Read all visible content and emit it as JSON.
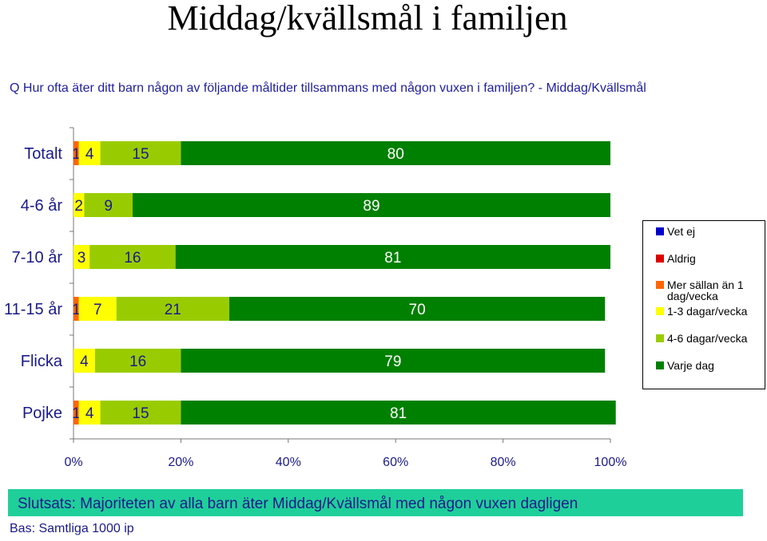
{
  "title": "Middag/kvällsmål i familjen",
  "question": "Q  Hur ofta äter ditt barn någon av följande måltider tillsammans med någon vuxen i familjen? - Middag/Kvällsmål",
  "conclusion": "Slutsats: Majoriteten av alla barn äter Middag/Kvällsmål med någon vuxen dagligen",
  "base": "Bas: Samtliga 1000 ip",
  "chart_data": {
    "type": "bar",
    "orientation": "horizontal",
    "stacked": true,
    "categories": [
      "Totalt",
      "4-6 år",
      "7-10 år",
      "11-15 år",
      "Flicka",
      "Pojke"
    ],
    "series": [
      {
        "name": "Vet ej",
        "color": "#0000cc",
        "values": [
          0,
          0,
          0,
          0,
          0,
          0
        ]
      },
      {
        "name": "Aldrig",
        "color": "#dd0000",
        "values": [
          0,
          0,
          0,
          0,
          0,
          0
        ]
      },
      {
        "name": "Mer sällan än 1 dag/vecka",
        "color": "#ff6600",
        "values": [
          1,
          0,
          0,
          1,
          0,
          1
        ]
      },
      {
        "name": "1-3 dagar/vecka",
        "color": "#ffff00",
        "values": [
          4,
          2,
          3,
          7,
          4,
          4
        ]
      },
      {
        "name": "4-6 dagar/vecka",
        "color": "#99cc00",
        "values": [
          15,
          9,
          16,
          21,
          16,
          15
        ]
      },
      {
        "name": "Varje dag",
        "color": "#008000",
        "values": [
          80,
          89,
          81,
          70,
          79,
          81
        ]
      }
    ],
    "xlim": [
      0,
      100
    ],
    "x_ticks": [
      "0%",
      "20%",
      "40%",
      "60%",
      "80%",
      "100%"
    ],
    "legend_position": "right"
  }
}
